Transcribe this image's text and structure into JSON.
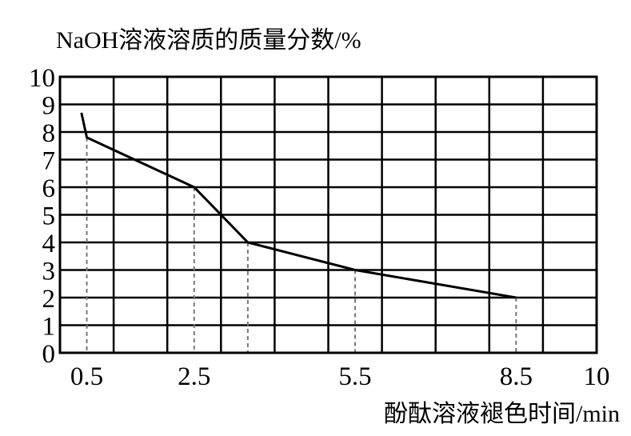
{
  "chart_data": {
    "type": "line",
    "ylabel": "NaOH溶液溶质的质量分数/%",
    "xlabel": "酚酞溶液褪色时间/min",
    "xlim": [
      0,
      10
    ],
    "ylim": [
      0,
      10
    ],
    "x_tick_labels": [
      "0.5",
      "2.5",
      "5.5",
      "8.5",
      "10"
    ],
    "y_ticks": [
      0,
      1,
      2,
      3,
      4,
      5,
      6,
      7,
      8,
      9,
      10
    ],
    "grid": true,
    "series": [
      {
        "points": [
          {
            "x": 0.4,
            "y": 8.7
          },
          {
            "x": 0.5,
            "y": 7.8
          },
          {
            "x": 2.5,
            "y": 6.0
          },
          {
            "x": 3.5,
            "y": 4.0
          },
          {
            "x": 5.5,
            "y": 3.0
          },
          {
            "x": 8.5,
            "y": 2.0
          }
        ]
      }
    ],
    "dashed_guides": [
      {
        "x": 0.5,
        "y": 7.8
      },
      {
        "x": 2.5,
        "y": 6.0
      },
      {
        "x": 3.5,
        "y": 4.0
      },
      {
        "x": 5.5,
        "y": 3.0
      },
      {
        "x": 8.5,
        "y": 2.0
      }
    ],
    "colors": {
      "line": "#000000",
      "grid": "#000000",
      "guide": "#777777"
    }
  }
}
